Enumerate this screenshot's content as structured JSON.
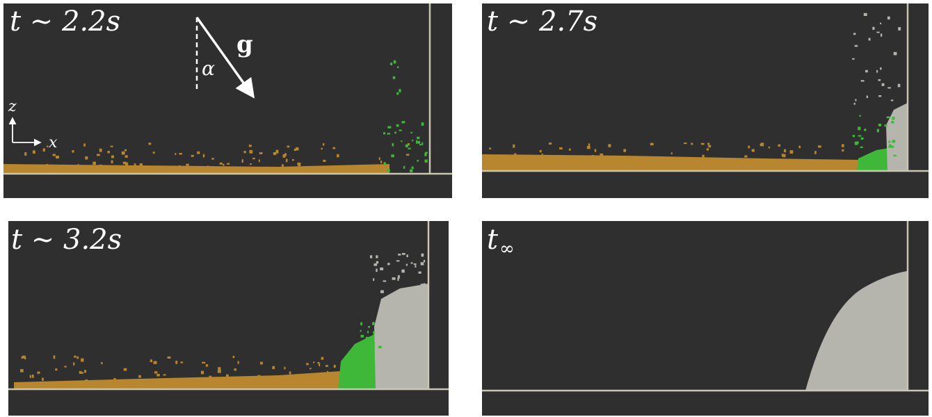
{
  "panels": [
    {
      "label": "t ∼ 2.2s"
    },
    {
      "label": "t ∼ 2.7s"
    },
    {
      "label": "t ∼ 3.2s"
    },
    {
      "label": "t",
      "subscript": "∞"
    }
  ],
  "annotations": {
    "gravity": "g",
    "angle": "α",
    "z_axis": "z",
    "x_axis": "x"
  }
}
